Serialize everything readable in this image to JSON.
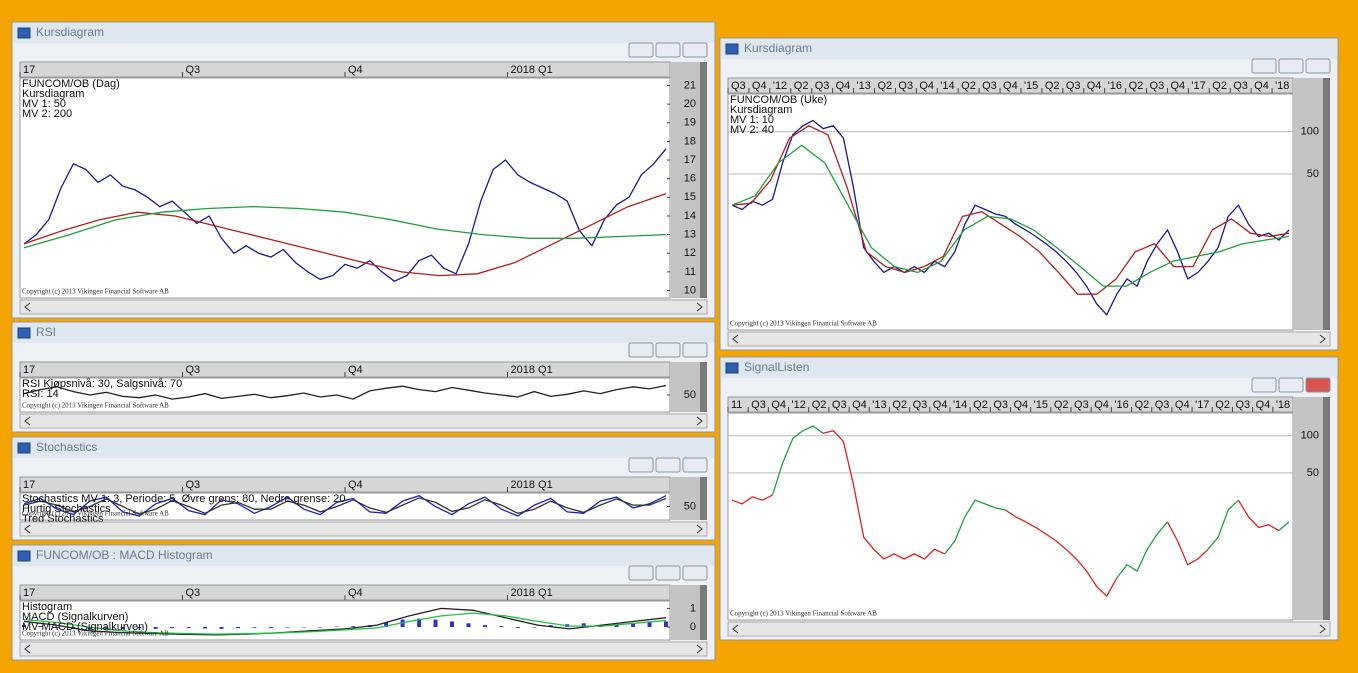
{
  "copyright": "Copyright (c) 2013 Vikingen Financial Software AB",
  "windows": [
    {
      "title": "Kursdiagram",
      "chart": {
        "type": "line",
        "title": "FUNCOM/OB (Dag)",
        "time_labels": [
          "17",
          "Q3",
          "Q4",
          "2018 Q1"
        ],
        "ylim": [
          9.6,
          21.4
        ],
        "yticks": [
          10,
          11,
          12,
          13,
          14,
          15,
          16,
          17,
          18,
          19,
          20,
          21
        ],
        "grid": false,
        "log": false,
        "series": [
          {
            "name": "Kursdiagram",
            "color": "#1a1a8c",
            "values": [
              12.5,
              13.0,
              13.8,
              15.5,
              16.8,
              16.5,
              15.8,
              16.2,
              15.6,
              15.4,
              15.0,
              14.5,
              14.8,
              14.2,
              13.6,
              14.0,
              12.8,
              12.0,
              12.4,
              12.0,
              11.8,
              12.2,
              11.5,
              11.0,
              10.6,
              10.8,
              11.4,
              11.2,
              11.6,
              11.0,
              10.5,
              10.8,
              11.6,
              11.9,
              11.2,
              10.9,
              12.5,
              14.8,
              16.5,
              17.0,
              16.2,
              15.8,
              15.5,
              15.2,
              14.8,
              13.2,
              12.4,
              13.8,
              14.6,
              15.0,
              16.2,
              16.8,
              17.6
            ]
          },
          {
            "name": "MV 1: 50",
            "color": "#b02020",
            "values": [
              12.5,
              13.2,
              13.8,
              14.2,
              14.0,
              13.5,
              13.0,
              12.5,
              12.0,
              11.5,
              11.0,
              10.8,
              10.9,
              11.5,
              12.5,
              13.5,
              14.5,
              15.2
            ]
          },
          {
            "name": "MV 2: 200",
            "color": "#20a040",
            "values": [
              12.3,
              13.0,
              13.8,
              14.2,
              14.4,
              14.5,
              14.4,
              14.2,
              13.8,
              13.3,
              13.0,
              12.8,
              12.8,
              12.9,
              13.0
            ]
          }
        ]
      }
    },
    {
      "title": "RSI",
      "chart": {
        "type": "line",
        "title": "RSI  Kjøpsnivå: 30, Salgsnivå: 70",
        "time_labels": [
          "17",
          "Q3",
          "Q4",
          "2018 Q1"
        ],
        "ylim": [
          25,
          75
        ],
        "yticks": [
          50
        ],
        "grid": false,
        "log": false,
        "series": [
          {
            "name": "RSI: 14",
            "color": "#222222",
            "values": [
              52,
              58,
              62,
              55,
              50,
              54,
              48,
              46,
              50,
              44,
              47,
              52,
              45,
              48,
              51,
              46,
              49,
              53,
              47,
              50,
              44,
              56,
              60,
              63,
              58,
              55,
              61,
              57,
              53,
              50,
              47,
              55,
              48,
              51,
              56,
              52,
              58,
              62,
              59,
              64
            ]
          }
        ]
      }
    },
    {
      "title": "Stochastics",
      "chart": {
        "type": "line",
        "title": "Stochastics MV 1: 3, Periode: 5, Øvre grens: 80, Nedre grense: 20",
        "time_labels": [
          "17",
          "Q3",
          "Q4",
          "2018 Q1"
        ],
        "ylim": [
          0,
          100
        ],
        "yticks": [
          50
        ],
        "grid": false,
        "log": false,
        "series": [
          {
            "name": "Hurtig Stochastics",
            "color": "#2020c0",
            "values": [
              60,
              80,
              40,
              20,
              70,
              85,
              30,
              15,
              60,
              80,
              35,
              20,
              75,
              60,
              25,
              50,
              85,
              40,
              20,
              65,
              80,
              30,
              25,
              70,
              90,
              50,
              20,
              60,
              85,
              40,
              15,
              55,
              80,
              30,
              25,
              70,
              85,
              45,
              60,
              90
            ]
          },
          {
            "name": "Treg Stochastics",
            "color": "#333333",
            "values": [
              55,
              70,
              55,
              30,
              50,
              78,
              50,
              22,
              40,
              72,
              50,
              25,
              55,
              65,
              40,
              40,
              70,
              55,
              30,
              50,
              75,
              45,
              28,
              55,
              82,
              65,
              32,
              45,
              75,
              55,
              25,
              40,
              70,
              45,
              28,
              55,
              78,
              55,
              55,
              80
            ]
          }
        ]
      }
    },
    {
      "title": "FUNCOM/OB : MACD Histogram",
      "chart": {
        "type": "line",
        "time_labels": [
          "17",
          "Q3",
          "Q4",
          "2018 Q1"
        ],
        "ylim": [
          -0.7,
          1.4
        ],
        "yticks": [
          0,
          1
        ],
        "grid": false,
        "log": false,
        "series": [
          {
            "name": "Histogram",
            "type": "bar",
            "color": "#3030d0",
            "values": [
              0.1,
              0.05,
              -0.05,
              -0.1,
              -0.15,
              -0.1,
              -0.12,
              -0.08,
              -0.1,
              -0.06,
              -0.05,
              -0.08,
              -0.1,
              -0.06,
              -0.04,
              -0.05,
              -0.03,
              -0.02,
              0.0,
              0.02,
              0.05,
              0.1,
              0.25,
              0.4,
              0.45,
              0.4,
              0.3,
              0.2,
              0.1,
              0.05,
              -0.05,
              0.0,
              0.1,
              0.15,
              0.2,
              0.1,
              0.15,
              0.2,
              0.25,
              0.3
            ]
          },
          {
            "name": "MACD (Signalkurven)",
            "color": "#222222",
            "values": [
              0.3,
              0.1,
              -0.2,
              -0.3,
              -0.35,
              -0.4,
              -0.42,
              -0.38,
              -0.3,
              -0.2,
              -0.1,
              0.1,
              0.6,
              1.0,
              0.9,
              0.5,
              0.1,
              -0.1,
              0.1,
              0.3,
              0.5
            ]
          },
          {
            "name": "MV MACD (Signalkurven)",
            "color": "#20c040",
            "values": [
              0.4,
              0.25,
              0.0,
              -0.2,
              -0.3,
              -0.35,
              -0.38,
              -0.36,
              -0.32,
              -0.25,
              -0.15,
              -0.05,
              0.3,
              0.6,
              0.75,
              0.6,
              0.3,
              0.05,
              0.05,
              0.2,
              0.35
            ]
          }
        ]
      }
    },
    {
      "title": "Kursdiagram",
      "chart": {
        "type": "line",
        "title": "FUNCOM/OB (Uke)",
        "time_labels": [
          "Q3",
          "Q4",
          "'12",
          "Q2",
          "Q3",
          "Q4",
          "'13",
          "Q2",
          "Q3",
          "Q4",
          "'14",
          "Q2",
          "Q3",
          "Q4",
          "'15",
          "Q2",
          "Q3",
          "Q4",
          "'16",
          "Q2",
          "Q3",
          "Q4",
          "'17",
          "Q2",
          "Q3",
          "Q4",
          "'18"
        ],
        "ylim": [
          3.9,
          185
        ],
        "yticks": [
          50,
          100
        ],
        "grid": true,
        "log": true,
        "series": [
          {
            "name": "Kursdiagram",
            "color": "#1a1a8c",
            "values": [
              30,
              28,
              32,
              30,
              33,
              60,
              95,
              110,
              120,
              105,
              110,
              90,
              40,
              15,
              12,
              10,
              11,
              10,
              11,
              10,
              12,
              11,
              14,
              22,
              30,
              28,
              26,
              25,
              22,
              20,
              18,
              16,
              14,
              12,
              10,
              8,
              6,
              5,
              7,
              9,
              8,
              12,
              16,
              20,
              14,
              9,
              10,
              12,
              15,
              25,
              30,
              22,
              18,
              19,
              17,
              20
            ]
          },
          {
            "name": "MV 1: 10",
            "color": "#b02020",
            "values": [
              30,
              31,
              45,
              90,
              110,
              95,
              40,
              14,
              11,
              10,
              11,
              13,
              25,
              27,
              22,
              18,
              14,
              10,
              7,
              7,
              9,
              14,
              16,
              11,
              11,
              20,
              24,
              19,
              18,
              19
            ]
          },
          {
            "name": "MV 2: 40",
            "color": "#20a040",
            "values": [
              30,
              35,
              60,
              80,
              60,
              30,
              15,
              11,
              10,
              12,
              20,
              25,
              24,
              20,
              15,
              11,
              8,
              8,
              10,
              12,
              13,
              14,
              16,
              17,
              18
            ]
          }
        ]
      }
    },
    {
      "title": "SignalListen",
      "chart": {
        "type": "line",
        "time_labels": [
          "11",
          "Q3",
          "Q4",
          "'12",
          "Q2",
          "Q3",
          "Q4",
          "'13",
          "Q2",
          "Q3",
          "Q4",
          "'14",
          "Q2",
          "Q3",
          "Q4",
          "'15",
          "Q2",
          "Q3",
          "Q4",
          "'16",
          "Q2",
          "Q3",
          "Q4",
          "'17",
          "Q2",
          "Q3",
          "Q4",
          "'18"
        ],
        "ylim": [
          3.2,
          153
        ],
        "yticks": [
          50,
          100
        ],
        "grid": true,
        "log": true,
        "series": [
          {
            "color": "#e02020",
            "values": [
              30,
              28,
              32,
              30,
              33,
              null,
              null,
              null,
              null,
              105,
              110,
              90,
              40,
              15,
              12,
              10,
              11,
              10,
              11,
              10,
              12,
              11,
              null,
              null,
              null,
              null,
              null,
              25,
              22,
              20,
              18,
              16,
              14,
              12,
              10,
              8,
              6,
              5,
              7,
              null,
              null,
              null,
              null,
              20,
              14,
              9,
              10,
              12,
              null,
              null,
              30,
              22,
              18,
              19,
              17,
              null
            ]
          },
          {
            "color": "#20a040",
            "values": [
              null,
              null,
              null,
              null,
              33,
              60,
              95,
              110,
              120,
              105,
              null,
              null,
              null,
              null,
              null,
              null,
              null,
              null,
              null,
              null,
              null,
              11,
              14,
              22,
              30,
              28,
              26,
              25,
              null,
              null,
              null,
              null,
              null,
              null,
              null,
              null,
              null,
              null,
              7,
              9,
              8,
              12,
              16,
              20,
              null,
              null,
              null,
              12,
              15,
              25,
              30,
              null,
              null,
              null,
              17,
              20
            ]
          }
        ]
      }
    }
  ]
}
